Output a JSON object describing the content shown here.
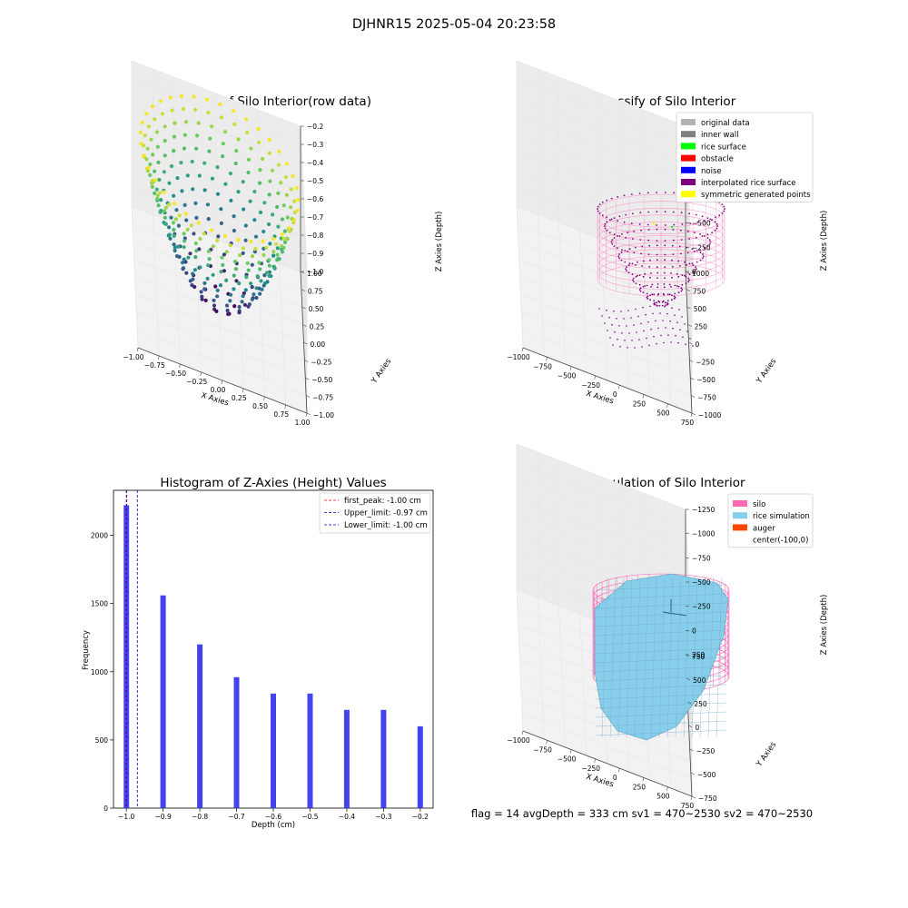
{
  "figure_title": "DJHNR15 2025-05-04 20:23:58",
  "footer": "flag = 14   avgDepth = 333 cm   sv1 = 470~2530   sv2 = 470~2530",
  "chart_data": [
    {
      "type": "scatter",
      "subtype": "3d",
      "title": "3D Plot of Silo Interior(row data)",
      "xlabel": "X Axies",
      "ylabel": "Y Axies",
      "zlabel": "Z Axies (Depth)",
      "x_ticks": [
        "−1.00",
        "−0.75",
        "−0.50",
        "−0.25",
        "0.00",
        "0.25",
        "0.50",
        "0.75",
        "1.00"
      ],
      "y_ticks": [
        "−1.00",
        "−0.75",
        "−0.50",
        "−0.25",
        "0.00",
        "0.25",
        "0.50",
        "0.75",
        "1.00"
      ],
      "z_ticks": [
        "−1.0",
        "−0.9",
        "−0.8",
        "−0.7",
        "−0.6",
        "−0.5",
        "−0.4",
        "−0.3",
        "−0.2"
      ],
      "xlim": [
        -1,
        1
      ],
      "ylim": [
        -1,
        1
      ],
      "zlim": [
        -1.0,
        -0.2
      ],
      "colormap": "viridis",
      "grid": true
    },
    {
      "type": "scatter",
      "subtype": "3d",
      "title": "3D classify of Silo Interior",
      "xlabel": "X Axies",
      "ylabel": "Y Axies",
      "zlabel": "Z Axies (Depth)",
      "x_ticks": [
        "−1000",
        "−750",
        "−500",
        "−250",
        "0",
        "250",
        "500",
        "750"
      ],
      "y_ticks": [
        "−1000",
        "−750",
        "−500",
        "−250",
        "0",
        "250",
        "500",
        "750",
        "1000"
      ],
      "z_ticks": [
        "0",
        "−250",
        "−500",
        "−750",
        "−1000",
        "−1250",
        "−1500"
      ],
      "legend_position": "top-right",
      "legend": [
        {
          "label": "original data",
          "color": "#b3b3b3"
        },
        {
          "label": "inner wall",
          "color": "#808080"
        },
        {
          "label": "rice surface",
          "color": "#00ff00"
        },
        {
          "label": "obstacle",
          "color": "#ff0000"
        },
        {
          "label": "noise",
          "color": "#0000ff"
        },
        {
          "label": "interpolated rice surface",
          "color": "#800080"
        },
        {
          "label": "symmetric generated points",
          "color": "#ffff00"
        }
      ],
      "grid": true
    },
    {
      "type": "bar",
      "title": "Histogram of Z-Axies (Height) Values",
      "xlabel": "Depth (cm)",
      "ylabel": "Frequency",
      "x": [
        -1.0,
        -0.9,
        -0.8,
        -0.7,
        -0.6,
        -0.5,
        -0.4,
        -0.3,
        -0.2
      ],
      "values": [
        2220,
        1560,
        1200,
        960,
        840,
        840,
        720,
        720,
        600
      ],
      "xlim": [
        -1.035,
        -0.165
      ],
      "ylim": [
        0,
        2330
      ],
      "x_ticks": [
        "−1.0",
        "−0.9",
        "−0.8",
        "−0.7",
        "−0.6",
        "−0.5",
        "−0.4",
        "−0.3",
        "−0.2"
      ],
      "y_ticks": [
        0,
        500,
        1000,
        1500,
        2000
      ],
      "bar_color": "#4444ee",
      "reference_lines": [
        {
          "label": "first_peak: -1.00 cm",
          "x": -1.0,
          "color": "#ff0000"
        },
        {
          "label": "Upper_limit: -0.97 cm",
          "x": -0.97,
          "color": "#0000cc"
        },
        {
          "label": "Lower_limit: -1.00 cm",
          "x": -1.0,
          "color": "#0000cc"
        }
      ],
      "legend_position": "top-right",
      "grid": false
    },
    {
      "type": "surface",
      "subtype": "3d",
      "title": "3D simulation of Silo Interior",
      "xlabel": "X Axies",
      "ylabel": "Y Axies",
      "zlabel": "Z Axies (Depth)",
      "x_ticks": [
        "−1000",
        "−750",
        "−500",
        "−250",
        "0",
        "250",
        "500",
        "750"
      ],
      "y_ticks": [
        "−750",
        "−500",
        "−250",
        "0",
        "250",
        "500",
        "750"
      ],
      "z_ticks": [
        "250",
        "0",
        "−250",
        "−500",
        "−750",
        "−1000",
        "−1250"
      ],
      "legend_position": "top-right",
      "legend": [
        {
          "label": "silo",
          "color": "#ff69b4"
        },
        {
          "label": "rice simulation",
          "color": "#87ceeb"
        },
        {
          "label": "auger",
          "color": "#ff4500"
        },
        {
          "label": "center(-100,0)",
          "color": "#ffffff"
        }
      ],
      "grid": true
    }
  ]
}
